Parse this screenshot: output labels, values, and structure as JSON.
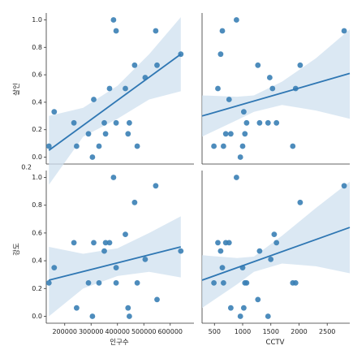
{
  "chart_data": [
    {
      "type": "scatter",
      "panel": "top-left",
      "xlabel": "",
      "ylabel": "살인",
      "xlim": [
        130000,
        690000
      ],
      "ylim": [
        -0.05,
        1.05
      ],
      "yticks": [
        0.0,
        0.2,
        0.4,
        0.6,
        0.8,
        1.0
      ],
      "ytick_labels": [
        "0.0",
        "0.2",
        "0.4",
        "0.6",
        "0.8",
        "1.0"
      ],
      "points": [
        {
          "x": 140000,
          "y": 0.08
        },
        {
          "x": 160000,
          "y": 0.33
        },
        {
          "x": 235000,
          "y": 0.25
        },
        {
          "x": 245000,
          "y": 0.08
        },
        {
          "x": 290000,
          "y": 0.17
        },
        {
          "x": 305000,
          "y": 0.0
        },
        {
          "x": 310000,
          "y": 0.42
        },
        {
          "x": 330000,
          "y": 0.08
        },
        {
          "x": 350000,
          "y": 0.25
        },
        {
          "x": 355000,
          "y": 0.17
        },
        {
          "x": 370000,
          "y": 0.5
        },
        {
          "x": 385000,
          "y": 1.0
        },
        {
          "x": 395000,
          "y": 0.92
        },
        {
          "x": 395000,
          "y": 0.25
        },
        {
          "x": 430000,
          "y": 0.5
        },
        {
          "x": 440000,
          "y": 0.17
        },
        {
          "x": 445000,
          "y": 0.25
        },
        {
          "x": 465000,
          "y": 0.67
        },
        {
          "x": 475000,
          "y": 0.08
        },
        {
          "x": 505000,
          "y": 0.58
        },
        {
          "x": 545000,
          "y": 0.92
        },
        {
          "x": 550000,
          "y": 0.67
        },
        {
          "x": 640000,
          "y": 0.75
        }
      ],
      "regression": {
        "x": [
          140000,
          640000
        ],
        "y": [
          0.05,
          0.75
        ]
      },
      "ci_band": {
        "x": [
          140000,
          270000,
          400000,
          520000,
          640000
        ],
        "lower": [
          -0.2,
          0.15,
          0.28,
          0.42,
          0.48
        ],
        "upper": [
          0.3,
          0.36,
          0.52,
          0.75,
          1.02
        ]
      }
    },
    {
      "type": "scatter",
      "panel": "top-right",
      "xlabel": "",
      "ylabel": "",
      "xlim": [
        280,
        2900
      ],
      "ylim": [
        -0.05,
        1.05
      ],
      "points": [
        {
          "x": 490,
          "y": 0.08
        },
        {
          "x": 560,
          "y": 0.5
        },
        {
          "x": 610,
          "y": 0.75
        },
        {
          "x": 640,
          "y": 0.92
        },
        {
          "x": 660,
          "y": 0.08
        },
        {
          "x": 700,
          "y": 0.17
        },
        {
          "x": 760,
          "y": 0.42
        },
        {
          "x": 790,
          "y": 0.17
        },
        {
          "x": 890,
          "y": 1.0
        },
        {
          "x": 960,
          "y": 0.0
        },
        {
          "x": 1000,
          "y": 0.08
        },
        {
          "x": 1020,
          "y": 0.33
        },
        {
          "x": 1040,
          "y": 0.17
        },
        {
          "x": 1070,
          "y": 0.25
        },
        {
          "x": 1270,
          "y": 0.67
        },
        {
          "x": 1300,
          "y": 0.25
        },
        {
          "x": 1450,
          "y": 0.25
        },
        {
          "x": 1480,
          "y": 0.58
        },
        {
          "x": 1530,
          "y": 0.5
        },
        {
          "x": 1600,
          "y": 0.25
        },
        {
          "x": 1890,
          "y": 0.08
        },
        {
          "x": 1940,
          "y": 0.5
        },
        {
          "x": 2020,
          "y": 0.67
        },
        {
          "x": 2800,
          "y": 0.92
        }
      ],
      "regression": {
        "x": [
          280,
          2900
        ],
        "y": [
          0.3,
          0.61
        ]
      },
      "ci_band": {
        "x": [
          280,
          900,
          1200,
          1700,
          2300,
          2900
        ],
        "lower": [
          0.15,
          0.27,
          0.33,
          0.38,
          0.34,
          0.28
        ],
        "upper": [
          0.45,
          0.44,
          0.45,
          0.55,
          0.72,
          0.93
        ]
      }
    },
    {
      "type": "scatter",
      "panel": "bottom-left",
      "xlabel": "인구수",
      "ylabel": "강도",
      "xlim": [
        130000,
        690000
      ],
      "ylim": [
        -0.05,
        1.05
      ],
      "yticks": [
        0.0,
        0.2,
        0.4,
        0.6,
        0.8,
        1.0
      ],
      "ytick_labels": [
        "0.0",
        "0.2",
        "0.4",
        "0.6",
        "0.8",
        "1.0"
      ],
      "xticks": [
        200000,
        300000,
        400000,
        500000,
        600000
      ],
      "xtick_labels": [
        "200000",
        "300000",
        "400000",
        "500000",
        "600000"
      ],
      "points": [
        {
          "x": 140000,
          "y": 0.24
        },
        {
          "x": 160000,
          "y": 0.35
        },
        {
          "x": 235000,
          "y": 0.53
        },
        {
          "x": 245000,
          "y": 0.06
        },
        {
          "x": 290000,
          "y": 0.24
        },
        {
          "x": 305000,
          "y": 0.0
        },
        {
          "x": 310000,
          "y": 0.53
        },
        {
          "x": 330000,
          "y": 0.24
        },
        {
          "x": 350000,
          "y": 0.47
        },
        {
          "x": 355000,
          "y": 0.53
        },
        {
          "x": 370000,
          "y": 0.53
        },
        {
          "x": 385000,
          "y": 1.0
        },
        {
          "x": 395000,
          "y": 0.35
        },
        {
          "x": 395000,
          "y": 0.24
        },
        {
          "x": 430000,
          "y": 0.59
        },
        {
          "x": 440000,
          "y": 0.06
        },
        {
          "x": 445000,
          "y": 0.0
        },
        {
          "x": 465000,
          "y": 0.82
        },
        {
          "x": 475000,
          "y": 0.24
        },
        {
          "x": 505000,
          "y": 0.41
        },
        {
          "x": 545000,
          "y": 0.94
        },
        {
          "x": 550000,
          "y": 0.12
        },
        {
          "x": 640000,
          "y": 0.47
        }
      ],
      "regression": {
        "x": [
          140000,
          640000
        ],
        "y": [
          0.26,
          0.5
        ]
      },
      "ci_band": {
        "x": [
          140000,
          270000,
          400000,
          520000,
          640000
        ],
        "lower": [
          0.0,
          0.2,
          0.29,
          0.32,
          0.28
        ],
        "upper": [
          0.5,
          0.45,
          0.49,
          0.6,
          0.72
        ]
      }
    },
    {
      "type": "scatter",
      "panel": "bottom-right",
      "xlabel": "CCTV",
      "ylabel": "",
      "xlim": [
        280,
        2900
      ],
      "ylim": [
        -0.05,
        1.05
      ],
      "xticks": [
        500,
        1000,
        1500,
        2000,
        2500
      ],
      "xtick_labels": [
        "500",
        "1000",
        "1500",
        "2000",
        "2500"
      ],
      "points": [
        {
          "x": 490,
          "y": 0.24
        },
        {
          "x": 560,
          "y": 0.53
        },
        {
          "x": 610,
          "y": 0.47
        },
        {
          "x": 640,
          "y": 0.35
        },
        {
          "x": 660,
          "y": 0.24
        },
        {
          "x": 700,
          "y": 0.53
        },
        {
          "x": 760,
          "y": 0.53
        },
        {
          "x": 790,
          "y": 0.06
        },
        {
          "x": 890,
          "y": 1.0
        },
        {
          "x": 960,
          "y": 0.0
        },
        {
          "x": 1000,
          "y": 0.35
        },
        {
          "x": 1020,
          "y": 0.06
        },
        {
          "x": 1040,
          "y": 0.24
        },
        {
          "x": 1070,
          "y": 0.24
        },
        {
          "x": 1270,
          "y": 0.12
        },
        {
          "x": 1300,
          "y": 0.47
        },
        {
          "x": 1450,
          "y": 0.0
        },
        {
          "x": 1500,
          "y": 0.41
        },
        {
          "x": 1560,
          "y": 0.59
        },
        {
          "x": 1600,
          "y": 0.53
        },
        {
          "x": 1890,
          "y": 0.24
        },
        {
          "x": 1940,
          "y": 0.24
        },
        {
          "x": 2020,
          "y": 0.82
        },
        {
          "x": 2800,
          "y": 0.94
        }
      ],
      "regression": {
        "x": [
          280,
          2900
        ],
        "y": [
          0.26,
          0.64
        ]
      },
      "ci_band": {
        "x": [
          280,
          900,
          1200,
          1700,
          2300,
          2900
        ],
        "lower": [
          0.06,
          0.23,
          0.32,
          0.38,
          0.36,
          0.31
        ],
        "upper": [
          0.44,
          0.42,
          0.43,
          0.58,
          0.78,
          0.97
        ]
      }
    }
  ],
  "colors": {
    "marker": "#3a7fb5",
    "line": "#2f77b3",
    "band": "#cfe0ef"
  }
}
